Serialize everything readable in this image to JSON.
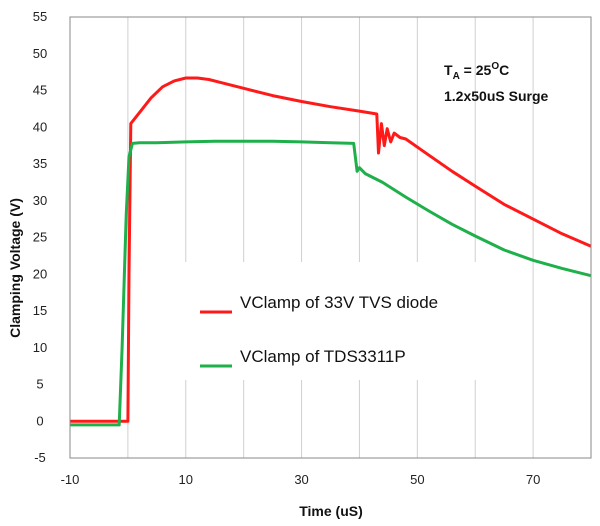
{
  "chart_data": {
    "type": "line",
    "title": "",
    "xlabel": "Time (uS)",
    "ylabel": "Clamping Voltage (V)",
    "xlim": [
      -10,
      80
    ],
    "ylim": [
      -5,
      55
    ],
    "x_ticks": [
      -10,
      10,
      30,
      50,
      70
    ],
    "y_ticks": [
      -5,
      0,
      5,
      10,
      15,
      20,
      25,
      30,
      35,
      40,
      45,
      50,
      55
    ],
    "x_tick_labels": [
      "-10",
      "10",
      "30",
      "50",
      "70"
    ],
    "y_tick_labels": [
      "-5",
      "0",
      "5",
      "10",
      "15",
      "20",
      "25",
      "30",
      "35",
      "40",
      "45",
      "50",
      "55"
    ],
    "grid": "vertical",
    "legend_position": "center",
    "annotation": {
      "line1_main": "T",
      "line1_sub": "A",
      "line1_mid": " = 25",
      "line1_sup": "O",
      "line1_end": "C",
      "line2": "1.2x50uS Surge"
    },
    "series": [
      {
        "name": "VClamp of 33V TVS diode",
        "color": "#ff1a1a",
        "x": [
          -10,
          0,
          0.2,
          0.5,
          2,
          4,
          6,
          8,
          10,
          12,
          14,
          16,
          20,
          25,
          30,
          35,
          40,
          43,
          43.3,
          43.8,
          44.3,
          44.8,
          45.4,
          46,
          47,
          48,
          52,
          56,
          60,
          65,
          70,
          75,
          80
        ],
        "y": [
          0,
          0,
          20,
          40.5,
          42,
          44,
          45.5,
          46.3,
          46.7,
          46.7,
          46.5,
          46.1,
          45.3,
          44.3,
          43.5,
          42.8,
          42.2,
          41.8,
          36.5,
          40.5,
          37.5,
          39.8,
          38,
          39.2,
          38.6,
          38.4,
          36.2,
          34,
          32,
          29.5,
          27.5,
          25.5,
          23.8
        ]
      },
      {
        "name": "VClamp of TDS3311P",
        "color": "#1fb04b",
        "x": [
          -10,
          -1.5,
          -1,
          -0.3,
          0.2,
          0.8,
          2,
          5,
          10,
          15,
          20,
          25,
          30,
          35,
          39,
          39.6,
          40,
          41,
          44,
          48,
          52,
          56,
          60,
          65,
          70,
          75,
          80
        ],
        "y": [
          -0.5,
          -0.5,
          10,
          28,
          36,
          37.8,
          37.9,
          37.9,
          38,
          38.1,
          38.1,
          38.1,
          38,
          37.9,
          37.8,
          34,
          34.5,
          33.7,
          32.5,
          30.5,
          28.6,
          26.8,
          25.2,
          23.3,
          21.9,
          20.8,
          19.8
        ]
      }
    ]
  }
}
